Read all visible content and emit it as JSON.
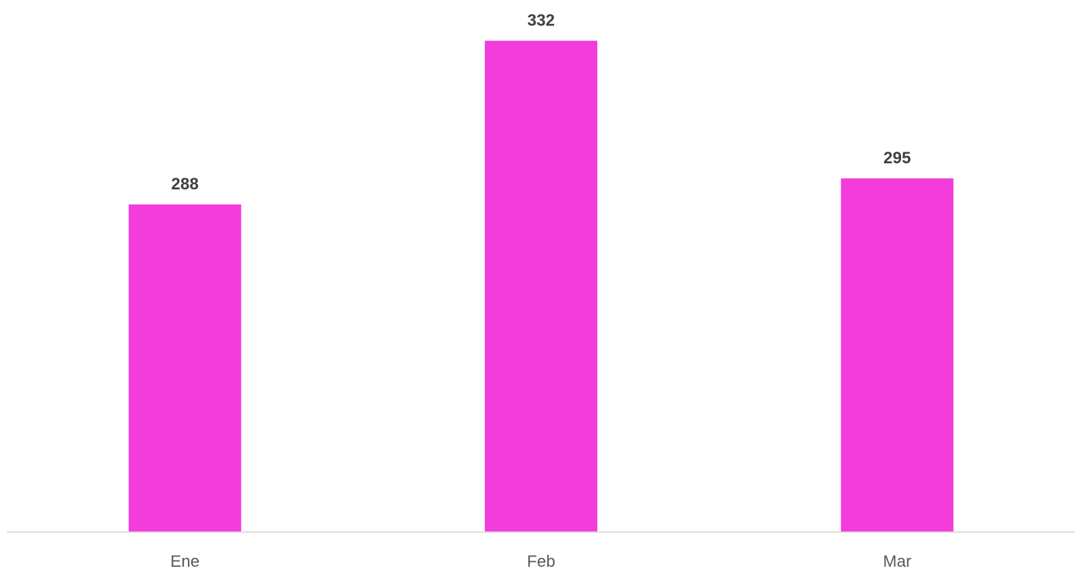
{
  "chart_data": {
    "type": "bar",
    "categories": [
      "Ene",
      "Feb",
      "Mar"
    ],
    "values": [
      288,
      332,
      295
    ],
    "data_labels": [
      "288",
      "332",
      "295"
    ],
    "title": "",
    "xlabel": "",
    "ylabel": "",
    "ylim": [
      200,
      340
    ],
    "grid": false,
    "legend": "none",
    "show_value_axis": false
  },
  "colors": {
    "bar": "#f43bdc",
    "axis_line": "#d9d9d9",
    "value_label": "#404040",
    "category_label": "#595959",
    "background": "#ffffff"
  }
}
